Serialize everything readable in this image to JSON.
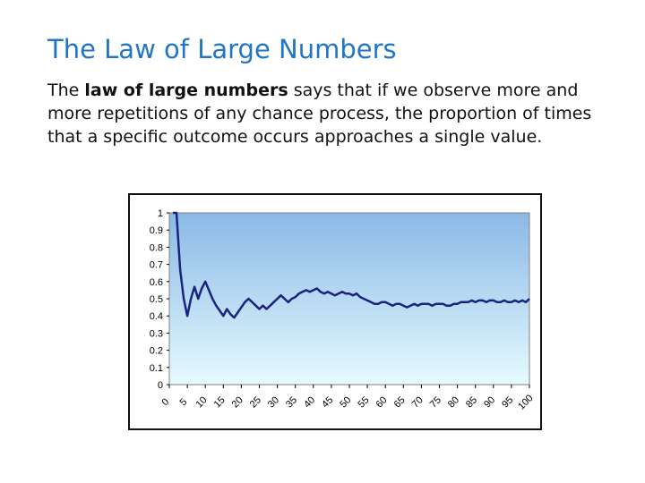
{
  "slide": {
    "title": "The Law of Large Numbers",
    "body_prefix": "The ",
    "body_bold": "law of large numbers",
    "body_suffix": " says that if we observe more and more repetitions of any chance process, the proportion of times that a specific outcome occurs approaches a single value."
  },
  "colors": {
    "title": "#1f76c8",
    "line": "#1a237e",
    "plot_top": "#8ab8e6",
    "plot_bottom": "#e6fbff"
  },
  "chart_data": {
    "type": "line",
    "title": "",
    "xlabel": "",
    "ylabel": "",
    "xlim": [
      0,
      100
    ],
    "ylim": [
      0,
      1
    ],
    "grid": false,
    "legend": "none",
    "x_ticks": [
      "0",
      "5",
      "10",
      "15",
      "20",
      "25",
      "30",
      "35",
      "40",
      "45",
      "50",
      "55",
      "60",
      "65",
      "70",
      "75",
      "80",
      "85",
      "90",
      "95",
      "100"
    ],
    "y_ticks": [
      "0",
      "0.1",
      "0.2",
      "0.3",
      "0.4",
      "0.5",
      "0.6",
      "0.7",
      "0.8",
      "0.9",
      "1"
    ],
    "series": [
      {
        "x": [
          1,
          2,
          3,
          4,
          5,
          6,
          7,
          8,
          9,
          10,
          11,
          12,
          13,
          14,
          15,
          16,
          17,
          18,
          19,
          20,
          21,
          22,
          23,
          24,
          25,
          26,
          27,
          28,
          29,
          30,
          31,
          32,
          33,
          34,
          35,
          36,
          37,
          38,
          39,
          40,
          41,
          42,
          43,
          44,
          45,
          46,
          47,
          48,
          49,
          50,
          51,
          52,
          53,
          54,
          55,
          56,
          57,
          58,
          59,
          60,
          61,
          62,
          63,
          64,
          65,
          66,
          67,
          68,
          69,
          70,
          71,
          72,
          73,
          74,
          75,
          76,
          77,
          78,
          79,
          80,
          81,
          82,
          83,
          84,
          85,
          86,
          87,
          88,
          89,
          90,
          91,
          92,
          93,
          94,
          95,
          96,
          97,
          98,
          99,
          100
        ],
        "values": [
          1,
          1,
          0.67,
          0.5,
          0.4,
          0.5,
          0.57,
          0.5,
          0.56,
          0.6,
          0.55,
          0.5,
          0.46,
          0.43,
          0.4,
          0.44,
          0.41,
          0.39,
          0.42,
          0.45,
          0.48,
          0.5,
          0.48,
          0.46,
          0.44,
          0.46,
          0.44,
          0.46,
          0.48,
          0.5,
          0.52,
          0.5,
          0.48,
          0.5,
          0.51,
          0.53,
          0.54,
          0.55,
          0.54,
          0.55,
          0.56,
          0.54,
          0.53,
          0.54,
          0.53,
          0.52,
          0.53,
          0.54,
          0.53,
          0.53,
          0.52,
          0.53,
          0.51,
          0.5,
          0.49,
          0.48,
          0.47,
          0.47,
          0.48,
          0.48,
          0.47,
          0.46,
          0.47,
          0.47,
          0.46,
          0.45,
          0.46,
          0.47,
          0.46,
          0.47,
          0.47,
          0.47,
          0.46,
          0.47,
          0.47,
          0.47,
          0.46,
          0.46,
          0.47,
          0.47,
          0.48,
          0.48,
          0.48,
          0.49,
          0.48,
          0.49,
          0.49,
          0.48,
          0.49,
          0.49,
          0.48,
          0.48,
          0.49,
          0.48,
          0.48,
          0.49,
          0.48,
          0.49,
          0.48,
          0.5
        ]
      }
    ]
  }
}
